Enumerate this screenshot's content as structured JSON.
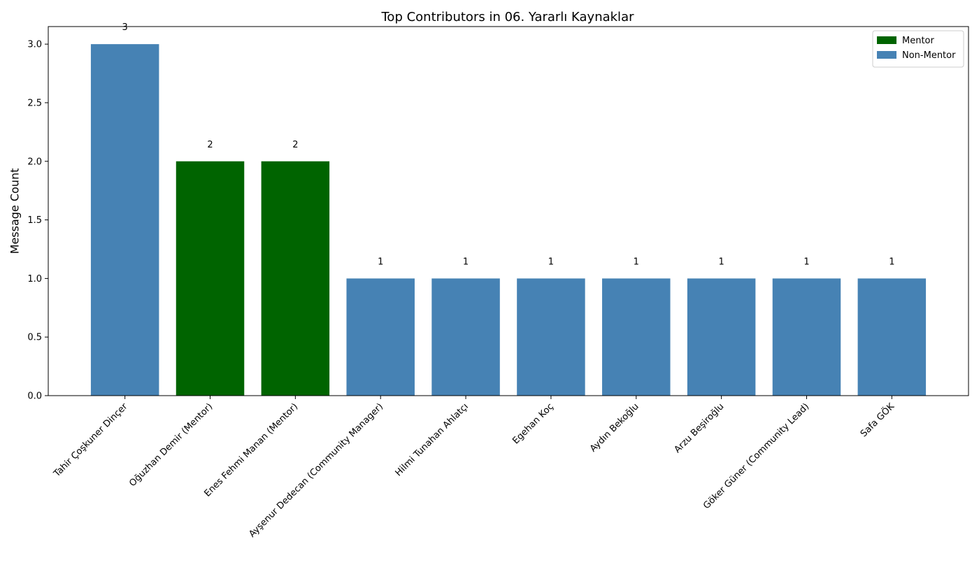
{
  "chart_data": {
    "type": "bar",
    "title": "Top Contributors in 06. Yararlı Kaynaklar",
    "xlabel": "",
    "ylabel": "Message Count",
    "ylim": [
      0,
      3.15
    ],
    "yticks": [
      "0.0",
      "0.5",
      "1.0",
      "1.5",
      "2.0",
      "2.5",
      "3.0"
    ],
    "ytick_values": [
      0,
      0.5,
      1.0,
      1.5,
      2.0,
      2.5,
      3.0
    ],
    "categories": [
      "Tahir Çoşkuner Dinçer",
      "Oğuzhan Demir (Mentor)",
      "Enes Fehmi Manan (Mentor)",
      "Ayşenur Dedecan (Community Manager)",
      "Hilmi Tunahan Ahlatçı",
      "Egehan Koç",
      "Aydın Bekoğlu",
      "Arzu Beşiroğlu",
      "Göker Güner (Community Lead)",
      "Safa GÖK"
    ],
    "values": [
      3,
      2,
      2,
      1,
      1,
      1,
      1,
      1,
      1,
      1
    ],
    "value_labels": [
      "3",
      "2",
      "2",
      "1",
      "1",
      "1",
      "1",
      "1",
      "1",
      "1"
    ],
    "groups": [
      "Non-Mentor",
      "Mentor",
      "Mentor",
      "Non-Mentor",
      "Non-Mentor",
      "Non-Mentor",
      "Non-Mentor",
      "Non-Mentor",
      "Non-Mentor",
      "Non-Mentor"
    ],
    "legend": {
      "position": "top-right",
      "entries": [
        {
          "label": "Mentor",
          "color": "#006400"
        },
        {
          "label": "Non-Mentor",
          "color": "#4682b4"
        }
      ]
    },
    "colors": {
      "Mentor": "#006400",
      "Non-Mentor": "#4682b4"
    },
    "grid": false
  }
}
